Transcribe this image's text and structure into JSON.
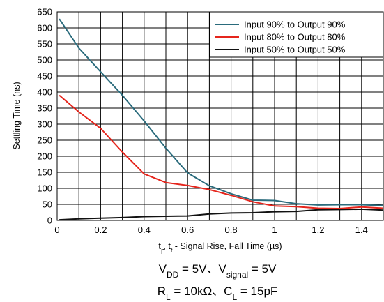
{
  "chart_data": {
    "type": "line",
    "xlabel": {
      "t_r": "t",
      "r_sub": "r",
      "sep": ", ",
      "t_f": "t",
      "f_sub": "f",
      "rest": " - Signal Rise, Fall Time (",
      "mu": "µ",
      "unit": "s)"
    },
    "ylabel": "Settling Time (ns)",
    "xlim": [
      0,
      1.5
    ],
    "ylim": [
      0,
      650
    ],
    "xticks": [
      "0",
      "0.2",
      "0.4",
      "0.6",
      "0.8",
      "1",
      "1.2",
      "1.4"
    ],
    "xtick_values": [
      0,
      0.2,
      0.4,
      0.6,
      0.8,
      1.0,
      1.2,
      1.4
    ],
    "yticks": [
      "0",
      "50",
      "100",
      "150",
      "200",
      "250",
      "300",
      "350",
      "400",
      "450",
      "500",
      "550",
      "600",
      "650"
    ],
    "ytick_values": [
      0,
      50,
      100,
      150,
      200,
      250,
      300,
      350,
      400,
      450,
      500,
      550,
      600,
      650
    ],
    "grid": true,
    "legend_position": "top-right",
    "series": [
      {
        "name": "Input 90% to Output 90%",
        "color": "#2a6b7c",
        "points": [
          [
            0.01,
            628
          ],
          [
            0.1,
            537
          ],
          [
            0.2,
            463
          ],
          [
            0.3,
            390
          ],
          [
            0.4,
            310
          ],
          [
            0.5,
            225
          ],
          [
            0.6,
            148
          ],
          [
            0.7,
            108
          ],
          [
            0.8,
            83
          ],
          [
            0.9,
            63
          ],
          [
            1.0,
            62
          ],
          [
            1.1,
            52
          ],
          [
            1.2,
            48
          ],
          [
            1.3,
            49
          ],
          [
            1.4,
            49
          ],
          [
            1.5,
            46
          ]
        ]
      },
      {
        "name": "Input 80% to Output 80%",
        "color": "#e5251c",
        "points": [
          [
            0.01,
            390
          ],
          [
            0.1,
            338
          ],
          [
            0.2,
            287
          ],
          [
            0.3,
            213
          ],
          [
            0.4,
            145
          ],
          [
            0.5,
            118
          ],
          [
            0.6,
            109
          ],
          [
            0.7,
            96
          ],
          [
            0.8,
            78
          ],
          [
            0.9,
            58
          ],
          [
            1.0,
            45
          ],
          [
            1.1,
            43
          ],
          [
            1.2,
            38
          ],
          [
            1.3,
            37
          ],
          [
            1.4,
            42
          ],
          [
            1.5,
            38
          ]
        ]
      },
      {
        "name": "Input 50% to Output 50%",
        "color": "#111111",
        "points": [
          [
            0.01,
            2
          ],
          [
            0.1,
            5
          ],
          [
            0.2,
            7
          ],
          [
            0.3,
            9
          ],
          [
            0.4,
            12
          ],
          [
            0.5,
            13
          ],
          [
            0.6,
            14
          ],
          [
            0.7,
            20
          ],
          [
            0.8,
            23
          ],
          [
            0.9,
            24
          ],
          [
            1.0,
            27
          ],
          [
            1.1,
            28
          ],
          [
            1.2,
            33
          ],
          [
            1.3,
            34
          ],
          [
            1.4,
            35
          ],
          [
            1.5,
            32
          ]
        ]
      }
    ]
  },
  "conditions": {
    "line1": {
      "v": "V",
      "dd_sub": "DD",
      "eq1": " = 5V、V",
      "sig_sub": "signal",
      "eq2": " = 5V"
    },
    "line2": {
      "r": "R",
      "l_sub": "L",
      "eq1": " = 10kΩ、C",
      "l_sub2": "L",
      "eq2": " = 15pF"
    }
  }
}
